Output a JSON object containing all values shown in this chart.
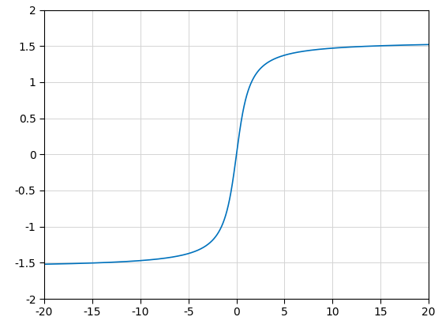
{
  "xlim": [
    -20,
    20
  ],
  "ylim": [
    -2,
    2
  ],
  "xticks": [
    -20,
    -15,
    -10,
    -5,
    0,
    5,
    10,
    15,
    20
  ],
  "yticks": [
    -2,
    -1.5,
    -1,
    -0.5,
    0,
    0.5,
    1,
    1.5,
    2
  ],
  "line_color": "#0072BD",
  "line_width": 1.2,
  "grid_color": "#D4D4D4",
  "grid_linewidth": 0.7,
  "background_color": "#FFFFFF",
  "axes_background": "#FFFFFF",
  "x_start": -20,
  "x_end": 20,
  "num_points": 2000,
  "tick_fontsize": 10,
  "spine_color": "#000000",
  "spine_linewidth": 0.8
}
